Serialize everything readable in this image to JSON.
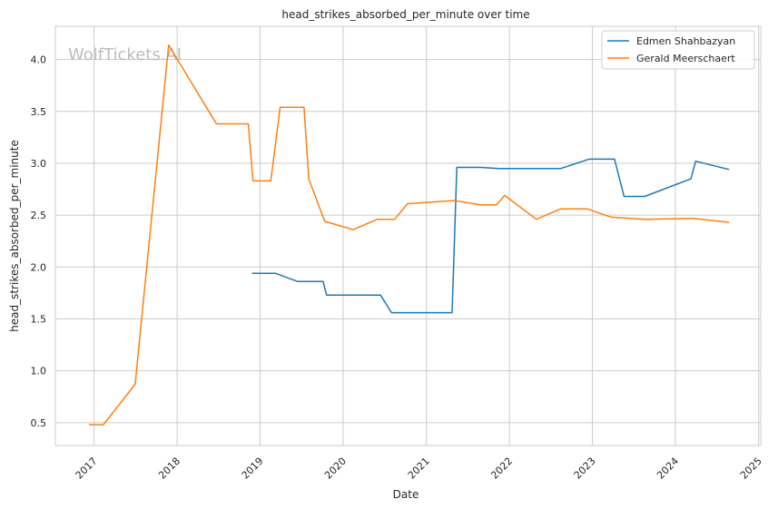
{
  "watermark": "WolfTickets.AI",
  "chart_data": {
    "type": "line",
    "title": "head_strikes_absorbed_per_minute over time",
    "xlabel": "Date",
    "ylabel": "head_strikes_absorbed_per_minute",
    "xlim": [
      "2016-07-15",
      "2025-01-10"
    ],
    "ylim": [
      0.28,
      4.32
    ],
    "x_ticks": [
      "2017",
      "2018",
      "2019",
      "2020",
      "2021",
      "2022",
      "2023",
      "2024",
      "2025"
    ],
    "y_ticks": [
      "0.5",
      "1.0",
      "1.5",
      "2.0",
      "2.5",
      "3.0",
      "3.5",
      "4.0"
    ],
    "grid": true,
    "legend_position": "top-right",
    "series": [
      {
        "name": "Edmen Shahbazyan",
        "color": "#1f77b4",
        "points": [
          [
            "2018-11-27",
            1.94
          ],
          [
            "2019-03-10",
            1.94
          ],
          [
            "2019-06-15",
            1.86
          ],
          [
            "2019-10-05",
            1.86
          ],
          [
            "2019-10-20",
            1.73
          ],
          [
            "2020-06-13",
            1.73
          ],
          [
            "2020-08-01",
            1.56
          ],
          [
            "2021-04-24",
            1.56
          ],
          [
            "2021-05-15",
            2.96
          ],
          [
            "2021-08-28",
            2.96
          ],
          [
            "2021-11-15",
            2.95
          ],
          [
            "2022-08-15",
            2.95
          ],
          [
            "2022-12-17",
            3.04
          ],
          [
            "2023-04-08",
            3.04
          ],
          [
            "2023-05-20",
            2.68
          ],
          [
            "2023-08-19",
            2.68
          ],
          [
            "2024-03-09",
            2.85
          ],
          [
            "2024-03-30",
            3.02
          ],
          [
            "2024-08-24",
            2.94
          ]
        ]
      },
      {
        "name": "Gerald Meerschaert",
        "color": "#ff7f0e",
        "points": [
          [
            "2016-12-10",
            0.48
          ],
          [
            "2017-02-11",
            0.48
          ],
          [
            "2017-07-01",
            0.87
          ],
          [
            "2017-11-25",
            4.14
          ],
          [
            "2018-06-23",
            3.38
          ],
          [
            "2018-11-10",
            3.38
          ],
          [
            "2018-12-01",
            2.83
          ],
          [
            "2019-02-17",
            2.83
          ],
          [
            "2019-03-30",
            3.54
          ],
          [
            "2019-07-13",
            3.54
          ],
          [
            "2019-08-03",
            2.85
          ],
          [
            "2019-10-12",
            2.44
          ],
          [
            "2020-02-15",
            2.36
          ],
          [
            "2020-05-30",
            2.46
          ],
          [
            "2020-08-15",
            2.46
          ],
          [
            "2020-10-10",
            2.61
          ],
          [
            "2021-05-01",
            2.64
          ],
          [
            "2021-08-28",
            2.6
          ],
          [
            "2021-11-06",
            2.6
          ],
          [
            "2021-12-11",
            2.69
          ],
          [
            "2022-04-30",
            2.46
          ],
          [
            "2022-08-13",
            2.56
          ],
          [
            "2022-12-10",
            2.56
          ],
          [
            "2023-03-25",
            2.48
          ],
          [
            "2023-08-26",
            2.46
          ],
          [
            "2024-03-16",
            2.47
          ],
          [
            "2024-08-24",
            2.43
          ]
        ]
      }
    ]
  }
}
